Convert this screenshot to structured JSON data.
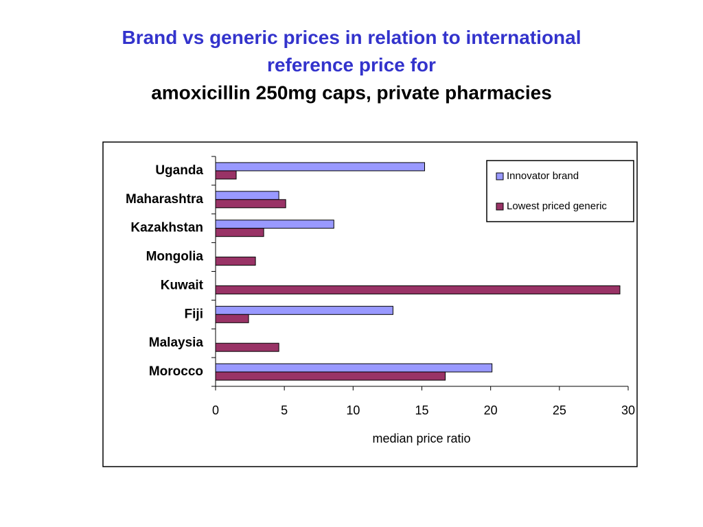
{
  "chart_data": {
    "type": "hbar",
    "title": "Brand vs generic prices in relation to international reference price for",
    "subtitle": "amoxicillin 250mg caps, private pharmacies",
    "xlabel": "median price ratio",
    "categories": [
      "Uganda",
      "Maharashtra",
      "Kazakhstan",
      "Mongolia",
      "Kuwait",
      "Fiji",
      "Malaysia",
      "Morocco"
    ],
    "series": [
      {
        "name": "Innovator brand",
        "color": "#9999ff",
        "values": [
          15.2,
          4.6,
          8.6,
          null,
          null,
          12.9,
          null,
          20.1
        ]
      },
      {
        "name": "Lowest priced generic",
        "color": "#993366",
        "values": [
          1.5,
          5.1,
          3.5,
          2.9,
          29.4,
          2.4,
          4.6,
          16.7
        ]
      }
    ],
    "xlim": [
      0,
      30
    ],
    "xticks": [
      0,
      5,
      10,
      15,
      20,
      25,
      30
    ],
    "legend": "top-right"
  }
}
